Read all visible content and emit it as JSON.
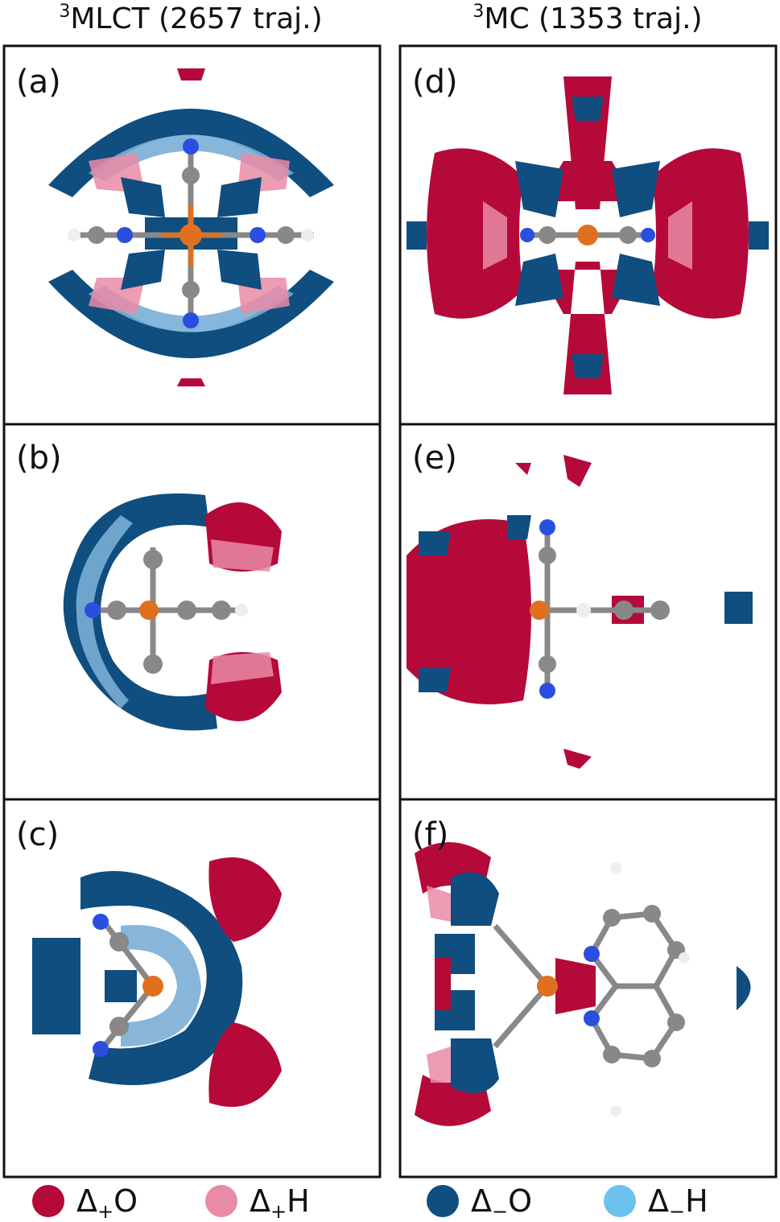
{
  "columns": [
    {
      "title": {
        "sup": "3",
        "text": "MLCT (2657 traj.)"
      },
      "panels": [
        "(a)",
        "(b)",
        "(c)"
      ]
    },
    {
      "title": {
        "sup": "3",
        "text": "MC (1353 traj.)"
      },
      "panels": [
        "(d)",
        "(e)",
        "(f)"
      ]
    }
  ],
  "legend": [
    {
      "symbol": "Δ",
      "sub": "+",
      "letter": "O",
      "color": "#b5093a"
    },
    {
      "symbol": "Δ",
      "sub": "+",
      "letter": "H",
      "color": "#e98ba6"
    },
    {
      "symbol": "Δ",
      "sub": "−",
      "letter": "O",
      "color": "#0f4e7e"
    },
    {
      "symbol": "Δ",
      "sub": "−",
      "letter": "H",
      "color": "#6cc2ee"
    }
  ]
}
